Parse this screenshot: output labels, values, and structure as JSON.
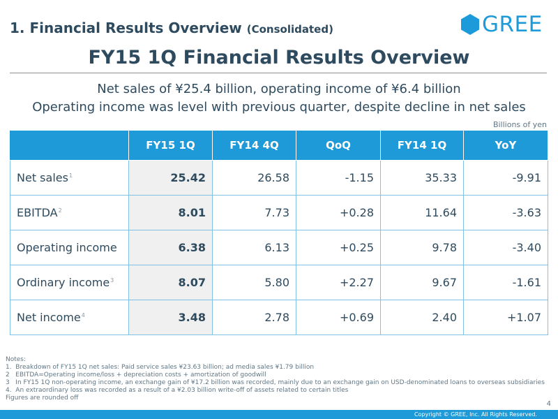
{
  "section": {
    "title": "1. Financial Results Overview",
    "subtitle": "(Consolidated)"
  },
  "logo": {
    "text": "GREE",
    "color": "#1d9ad9"
  },
  "main_title": "FY15 1Q Financial Results Overview",
  "summary": {
    "line1": "Net sales of ¥25.4 billion, operating income of ¥6.4 billion",
    "line2": "Operating income was level with previous quarter, despite decline in net sales"
  },
  "units": "Billions of yen",
  "table": {
    "headers": [
      "",
      "FY15 1Q",
      "FY14 4Q",
      "QoQ",
      "FY14 1Q",
      "YoY"
    ],
    "rows": [
      {
        "label": "Net sales",
        "note": "1",
        "values": [
          "25.42",
          "26.58",
          "-1.15",
          "35.33",
          "-9.91"
        ]
      },
      {
        "label": "EBITDA",
        "note": "2",
        "values": [
          "8.01",
          "7.73",
          "+0.28",
          "11.64",
          "-3.63"
        ]
      },
      {
        "label": "Operating income",
        "note": "",
        "values": [
          "6.38",
          "6.13",
          "+0.25",
          "9.78",
          "-3.40"
        ]
      },
      {
        "label": "Ordinary income",
        "note": "3",
        "values": [
          "8.07",
          "5.80",
          "+2.27",
          "9.67",
          "-1.61"
        ]
      },
      {
        "label": "Net income",
        "note": "4",
        "values": [
          "3.48",
          "2.78",
          "+0.69",
          "2.40",
          "+1.07"
        ]
      }
    ]
  },
  "notes": {
    "heading": "Notes:",
    "items": [
      "1.  Breakdown of FY15 1Q net sales: Paid service sales ¥23.63 billion; ad media sales ¥1.79 billion",
      "2   EBITDA=Operating income/loss + depreciation costs + amortization of goodwill",
      "3   In FY15 1Q non-operating income, an exchange gain of ¥17.2 billion was recorded, mainly due to an exchange gain on USD-denominated loans to overseas subsidiaries",
      "4.  An extraordinary loss was recorded as a result of a ¥2.03 billion write-off of assets related to certain titles"
    ],
    "footer": "Figures are rounded off"
  },
  "page_number": "4",
  "copyright": "Copyright © GREE, Inc. All Rights Reserved.",
  "colors": {
    "accent": "#1f9ad8",
    "text": "#2e4a5e",
    "highlight_bg": "#f0f0f0"
  }
}
